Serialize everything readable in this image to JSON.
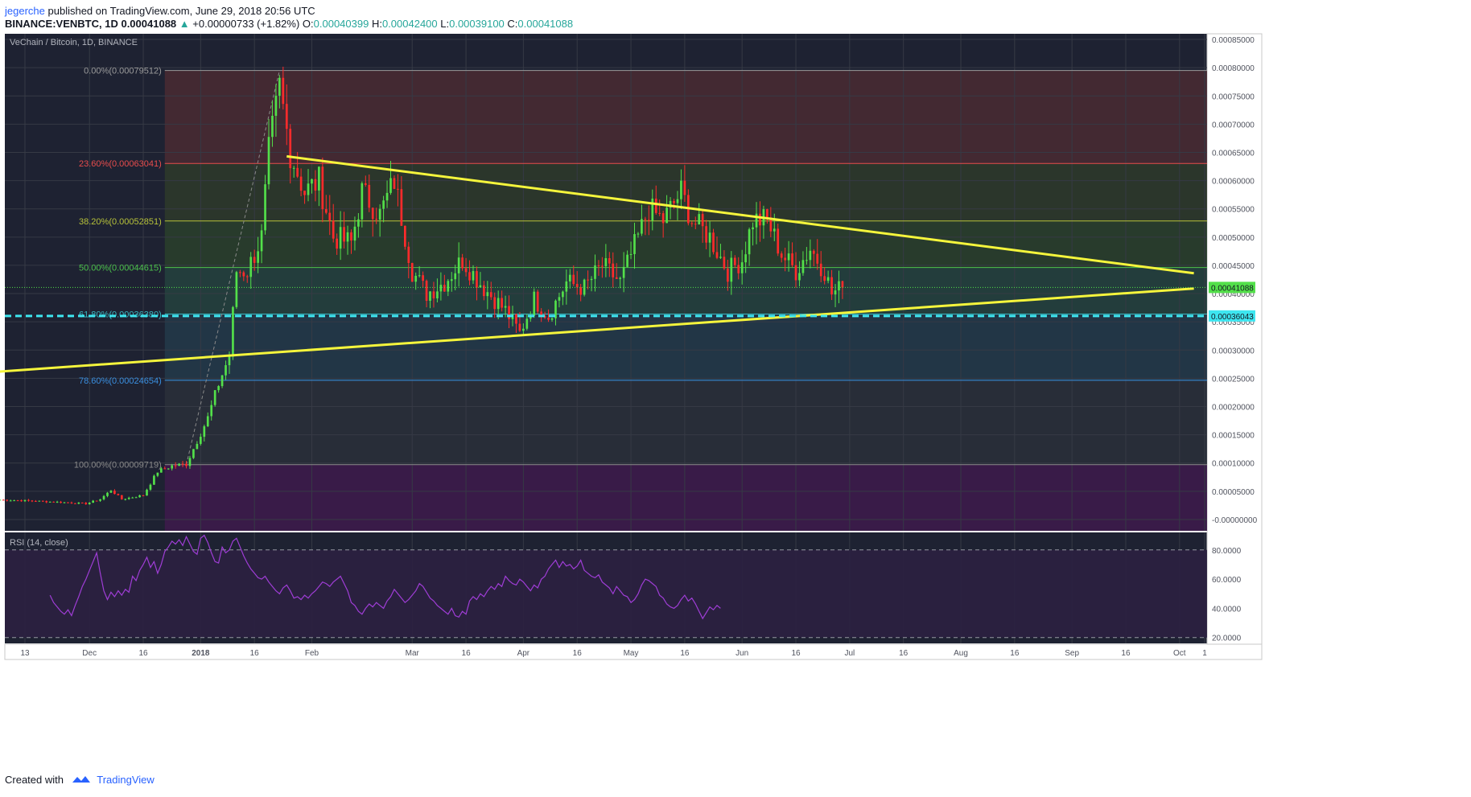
{
  "header": {
    "user": "jegerche",
    "published": "published on TradingView.com, June 29, 2018 20:56 UTC",
    "symbol": "BINANCE:VENBTC, 1D",
    "last": "0.00041088",
    "change": "+0.00000733 (+1.82%)",
    "o_label": "O:",
    "o": "0.00040399",
    "h_label": "H:",
    "h": "0.00042400",
    "l_label": "L:",
    "l": "0.00039100",
    "c_label": "C:",
    "c": "0.00041088"
  },
  "footer": {
    "created": "Created with",
    "brand": "TradingView"
  },
  "colors": {
    "bg": "#1e2232",
    "grid": "#363a45",
    "up": "#53e04a",
    "down": "#ff2b2b",
    "trend": "#f5f53c",
    "support": "#3ee6f0",
    "rsi": "#9f3dd6",
    "text": "#b2b5be",
    "fib_0": "#9b9b9b",
    "fib_236": "#e84c4c",
    "fib_382": "#b7c23a",
    "fib_50": "#4cc24c",
    "fib_618": "#3ab8c2",
    "fib_786": "#3a8fe0",
    "fib_100": "#8a8a8a"
  },
  "chart_data": [
    {
      "type": "candlestick",
      "title": "VeChain / Bitcoin, 1D, BINANCE",
      "interval": "1D",
      "y_unit": "BTC",
      "ylim": [
        -2e-05,
        0.00086
      ],
      "y_ticks": [
        "0.00085000",
        "0.00080000",
        "0.00075000",
        "0.00070000",
        "0.00065000",
        "0.00060000",
        "0.00055000",
        "0.00050000",
        "0.00045000",
        "0.00040000",
        "0.00035000",
        "0.00030000",
        "0.00025000",
        "0.00020000",
        "0.00015000",
        "0.00010000",
        "0.00005000",
        "-0.00000000"
      ],
      "x_ticks": [
        {
          "label": "13",
          "date": "2017-11-13"
        },
        {
          "label": "Dec",
          "date": "2017-12-01"
        },
        {
          "label": "16",
          "date": "2017-12-16"
        },
        {
          "label": "2018",
          "date": "2018-01-01"
        },
        {
          "label": "16",
          "date": "2018-01-16"
        },
        {
          "label": "Feb",
          "date": "2018-02-01"
        },
        {
          "label": "Mar",
          "date": "2018-03-01"
        },
        {
          "label": "16",
          "date": "2018-03-16"
        },
        {
          "label": "Apr",
          "date": "2018-04-01"
        },
        {
          "label": "16",
          "date": "2018-04-16"
        },
        {
          "label": "May",
          "date": "2018-05-01"
        },
        {
          "label": "16",
          "date": "2018-05-16"
        },
        {
          "label": "Jun",
          "date": "2018-06-01"
        },
        {
          "label": "16",
          "date": "2018-06-16"
        },
        {
          "label": "Jul",
          "date": "2018-07-01"
        },
        {
          "label": "16",
          "date": "2018-07-16"
        },
        {
          "label": "Aug",
          "date": "2018-08-01"
        },
        {
          "label": "16",
          "date": "2018-08-16"
        },
        {
          "label": "Sep",
          "date": "2018-09-01"
        },
        {
          "label": "16",
          "date": "2018-09-16"
        },
        {
          "label": "Oct",
          "date": "2018-10-01"
        },
        {
          "label": "1",
          "date": "2018-10-08"
        }
      ],
      "first_date": "2017-11-06",
      "last_date": "2018-06-29",
      "close_path": [
        {
          "date": "2017-11-06",
          "close": 3.5e-05
        },
        {
          "date": "2017-11-15",
          "close": 3.3e-05
        },
        {
          "date": "2017-11-25",
          "close": 3e-05
        },
        {
          "date": "2017-11-30",
          "close": 2.8e-05
        },
        {
          "date": "2017-12-04",
          "close": 3.6e-05
        },
        {
          "date": "2017-12-07",
          "close": 5.2e-05
        },
        {
          "date": "2017-12-10",
          "close": 3.6e-05
        },
        {
          "date": "2017-12-16",
          "close": 4.3e-05
        },
        {
          "date": "2017-12-20",
          "close": 8.5e-05
        },
        {
          "date": "2017-12-24",
          "close": 9.5e-05
        },
        {
          "date": "2017-12-28",
          "close": 9.8e-05
        },
        {
          "date": "2018-01-03",
          "close": 0.00018
        },
        {
          "date": "2018-01-06",
          "close": 0.00024
        },
        {
          "date": "2018-01-09",
          "close": 0.00029
        },
        {
          "date": "2018-01-11",
          "close": 0.00044
        },
        {
          "date": "2018-01-14",
          "close": 0.00044
        },
        {
          "date": "2018-01-18",
          "close": 0.0005
        },
        {
          "date": "2018-01-20",
          "close": 0.00065
        },
        {
          "date": "2018-01-23",
          "close": 0.000765
        },
        {
          "date": "2018-01-26",
          "close": 0.00065
        },
        {
          "date": "2018-01-30",
          "close": 0.00058
        },
        {
          "date": "2018-02-03",
          "close": 0.0006
        },
        {
          "date": "2018-02-07",
          "close": 0.0005
        },
        {
          "date": "2018-02-12",
          "close": 0.00049
        },
        {
          "date": "2018-02-15",
          "close": 0.00058
        },
        {
          "date": "2018-02-20",
          "close": 0.00054
        },
        {
          "date": "2018-02-24",
          "close": 0.0006
        },
        {
          "date": "2018-03-01",
          "close": 0.00044
        },
        {
          "date": "2018-03-05",
          "close": 0.0004
        },
        {
          "date": "2018-03-10",
          "close": 0.00042
        },
        {
          "date": "2018-03-15",
          "close": 0.00046
        },
        {
          "date": "2018-03-21",
          "close": 0.00041
        },
        {
          "date": "2018-03-27",
          "close": 0.00037
        },
        {
          "date": "2018-03-31",
          "close": 0.00033
        },
        {
          "date": "2018-04-04",
          "close": 0.00039
        },
        {
          "date": "2018-04-08",
          "close": 0.00036
        },
        {
          "date": "2018-04-13",
          "close": 0.00042
        },
        {
          "date": "2018-04-18",
          "close": 0.00041
        },
        {
          "date": "2018-04-23",
          "close": 0.00045
        },
        {
          "date": "2018-04-28",
          "close": 0.00042
        },
        {
          "date": "2018-05-03",
          "close": 0.0005
        },
        {
          "date": "2018-05-06",
          "close": 0.00055
        },
        {
          "date": "2018-05-10",
          "close": 0.00053
        },
        {
          "date": "2018-05-15",
          "close": 0.00058
        },
        {
          "date": "2018-05-18",
          "close": 0.00053
        },
        {
          "date": "2018-05-23",
          "close": 0.0005
        },
        {
          "date": "2018-05-28",
          "close": 0.00044
        },
        {
          "date": "2018-06-01",
          "close": 0.00046
        },
        {
          "date": "2018-06-04",
          "close": 0.00053
        },
        {
          "date": "2018-06-08",
          "close": 0.00053
        },
        {
          "date": "2018-06-12",
          "close": 0.00047
        },
        {
          "date": "2018-06-16",
          "close": 0.00044
        },
        {
          "date": "2018-06-20",
          "close": 0.00048
        },
        {
          "date": "2018-06-24",
          "close": 0.00044
        },
        {
          "date": "2018-06-26",
          "close": 0.0004
        },
        {
          "date": "2018-06-29",
          "close": 0.000411
        }
      ],
      "last_price_label": "0.00041088",
      "fib_levels": [
        {
          "label": "0.00%(0.00079512)",
          "price": 0.00079512,
          "color_key": "fib_0"
        },
        {
          "label": "23.60%(0.00063041)",
          "price": 0.00063041,
          "color_key": "fib_236"
        },
        {
          "label": "38.20%(0.00052851)",
          "price": 0.00052851,
          "color_key": "fib_382"
        },
        {
          "label": "50.00%(0.00044615)",
          "price": 0.00044615,
          "color_key": "fib_50"
        },
        {
          "label": "61.80%(0.00036380)",
          "price": 0.0003638,
          "color_key": "fib_618"
        },
        {
          "label": "78.60%(0.00024654)",
          "price": 0.00024654,
          "color_key": "fib_786"
        },
        {
          "label": "100.00%(0.00009719)",
          "price": 9.719e-05,
          "color_key": "fib_100"
        }
      ],
      "fib_start_date": "2017-12-22",
      "support_line": {
        "price": 0.00036043,
        "label": "0.00036043"
      },
      "trendlines": [
        {
          "name": "upper",
          "from": {
            "date": "2018-01-25",
            "price": 0.000643
          },
          "to": {
            "date": "2018-10-05",
            "price": 0.000436
          }
        },
        {
          "name": "lower",
          "from": {
            "date": "2017-11-06",
            "price": 0.000262
          },
          "to": {
            "date": "2018-10-05",
            "price": 0.000409
          }
        }
      ],
      "legend": "none",
      "grid": true
    },
    {
      "type": "line",
      "title": "RSI (14, close)",
      "ylim": [
        16,
        92
      ],
      "y_ticks": [
        "80.0000",
        "60.0000",
        "40.0000",
        "20.0000"
      ],
      "bands": [
        80,
        20
      ],
      "first_date": "2017-11-20",
      "series": [
        {
          "values": [
            49,
            44,
            41,
            38,
            36,
            39,
            35,
            42,
            48,
            55,
            60,
            66,
            72,
            78,
            64,
            52,
            46,
            51,
            48,
            52,
            49,
            53,
            51,
            62,
            59,
            66,
            70,
            75,
            68,
            72,
            64,
            70,
            79,
            82,
            86,
            84,
            87,
            83,
            89,
            84,
            79,
            77,
            88,
            90,
            85,
            78,
            72,
            71,
            82,
            78,
            80,
            86,
            88,
            82,
            76,
            71,
            67,
            64,
            61,
            60,
            62,
            58,
            55,
            52,
            50,
            54,
            56,
            52,
            47,
            48,
            46,
            49,
            47,
            50,
            52,
            55,
            58,
            57,
            55,
            58,
            60,
            62,
            57,
            52,
            44,
            42,
            38,
            36,
            40,
            43,
            41,
            44,
            42,
            40,
            45,
            48,
            53,
            50,
            47,
            44,
            46,
            49,
            52,
            57,
            55,
            51,
            47,
            45,
            42,
            40,
            38,
            36,
            40,
            35,
            34,
            38,
            36,
            45,
            48,
            46,
            50,
            48,
            52,
            55,
            53,
            57,
            55,
            62,
            59,
            57,
            56,
            60,
            58,
            55,
            52,
            56,
            54,
            60,
            62,
            67,
            70,
            73,
            68,
            72,
            69,
            70,
            67,
            69,
            73,
            66,
            64,
            62,
            61,
            63,
            58,
            56,
            54,
            50,
            55,
            52,
            49,
            48,
            44,
            46,
            50,
            56,
            60,
            59,
            57,
            55,
            49,
            47,
            43,
            41,
            40,
            42,
            46,
            49,
            45,
            47,
            43,
            38,
            33,
            37,
            41,
            39,
            42,
            40
          ]
        }
      ],
      "legend": "none",
      "grid": true
    }
  ]
}
